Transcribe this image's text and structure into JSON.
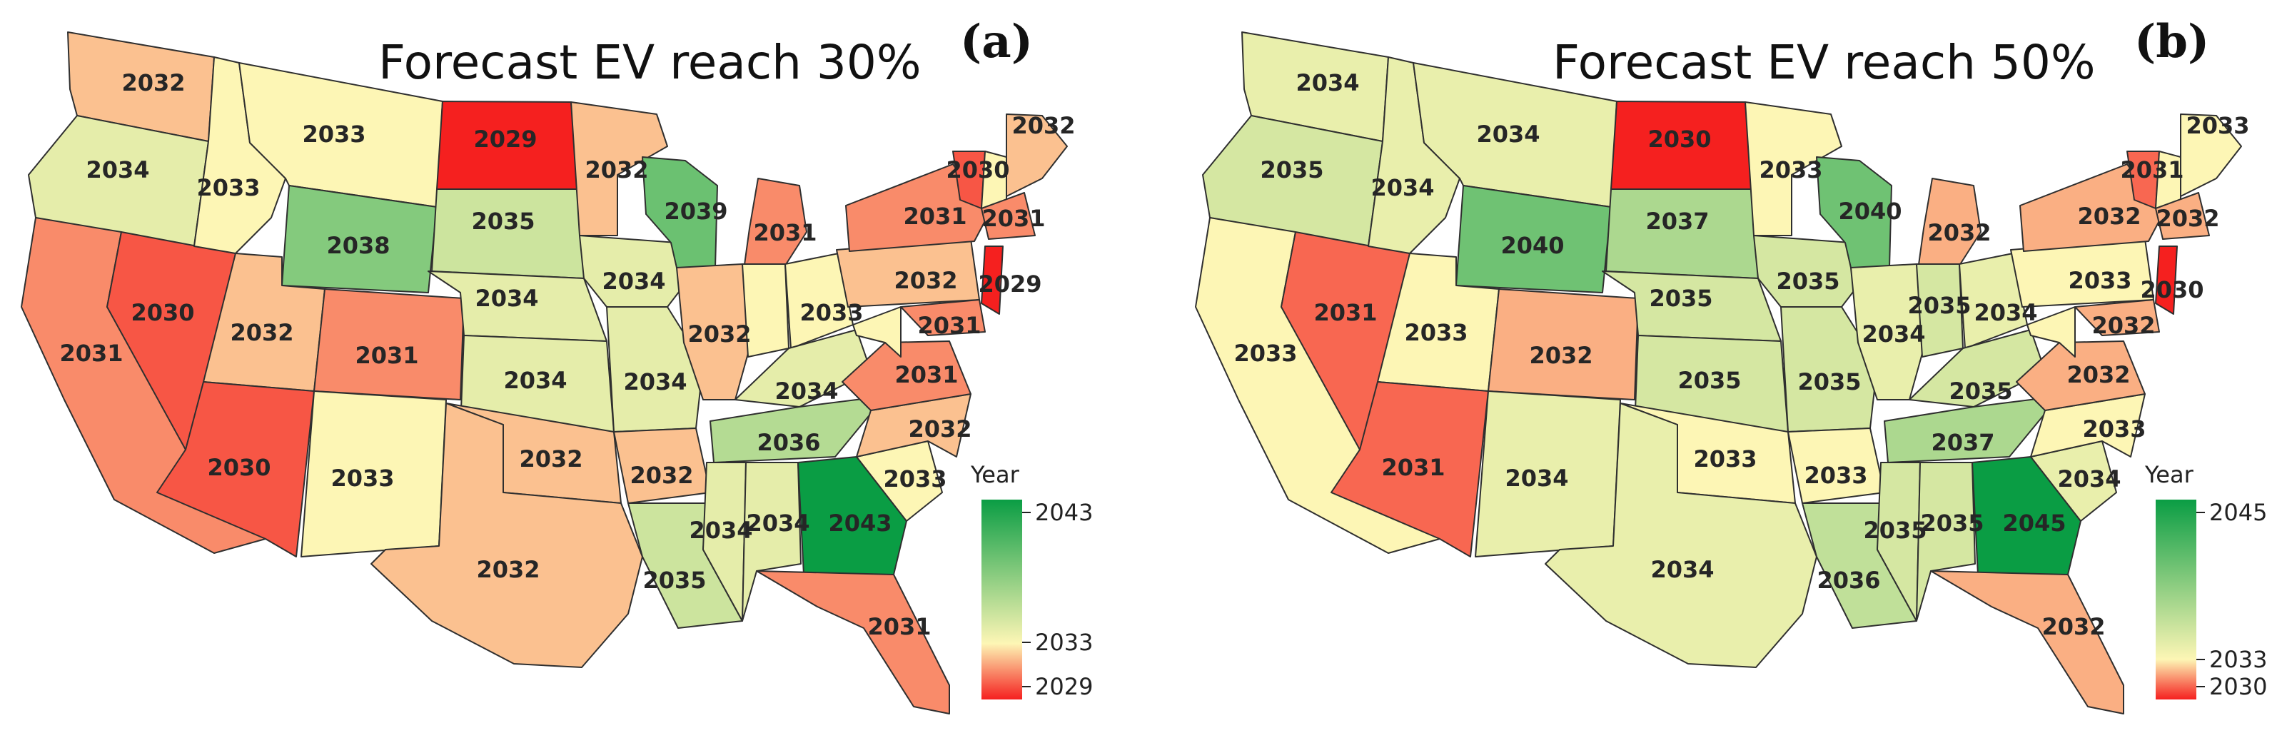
{
  "colors": {
    "low": "#f5201f",
    "mid": "#fdf6b5",
    "high": "#0a9d44",
    "border": "#2f2f2f",
    "background": "#ffffff"
  },
  "panels": [
    {
      "panel_label": "(a)",
      "title": "Forecast EV reach 30%",
      "legend": {
        "title": "Year",
        "ticks": [
          "2043",
          "2033",
          "2029"
        ],
        "min": 2029,
        "mid": 2033,
        "max": 2043
      },
      "states": {
        "WA": "2032",
        "OR": "2034",
        "CA": "2031",
        "NV": "2030",
        "ID": "2033",
        "MT": "2033",
        "WY": "2038",
        "UT": "2032",
        "AZ": "2030",
        "CO": "2031",
        "NM": "2033",
        "ND": "2029",
        "SD": "2035",
        "NE": "2034",
        "KS": "2034",
        "OK": "2032",
        "TX": "2032",
        "MN": "2032",
        "IA": "2034",
        "MO": "2034",
        "AR": "2032",
        "LA": "2035",
        "WI": "2039",
        "IL": "2032",
        "MI": "2031",
        "IN": "",
        "OH": "2033",
        "KY": "2034",
        "TN": "2036",
        "MS": "2034",
        "AL": "2034",
        "GA": "2043",
        "FL": "2031",
        "SC": "2033",
        "NC": "2032",
        "VA": "2031",
        "WV": "",
        "PA": "2032",
        "NY": "2031",
        "VT": "2030",
        "NH": "",
        "ME": "2032",
        "MA": "2031",
        "NJ": "2029",
        "MD": "2031"
      }
    },
    {
      "panel_label": "(b)",
      "title": "Forecast EV reach 50%",
      "legend": {
        "title": "Year",
        "ticks": [
          "2045",
          "2033",
          "2030"
        ],
        "min": 2030,
        "mid": 2033,
        "max": 2045
      },
      "states": {
        "WA": "2034",
        "OR": "2035",
        "CA": "2033",
        "NV": "2031",
        "ID": "2034",
        "MT": "2034",
        "WY": "2040",
        "UT": "2033",
        "AZ": "2031",
        "CO": "2032",
        "NM": "2034",
        "ND": "2030",
        "SD": "2037",
        "NE": "2035",
        "KS": "2035",
        "OK": "2033",
        "TX": "2034",
        "MN": "2033",
        "IA": "2035",
        "MO": "2035",
        "AR": "2033",
        "LA": "2036",
        "WI": "2040",
        "IL": "2034",
        "MI": "2032",
        "IN": "2035",
        "OH": "2034",
        "KY": "2035",
        "TN": "2037",
        "MS": "2035",
        "AL": "2035",
        "GA": "2045",
        "FL": "2032",
        "SC": "2034",
        "NC": "2033",
        "VA": "2032",
        "WV": "",
        "PA": "2033",
        "NY": "2032",
        "VT": "2031",
        "NH": "",
        "ME": "2033",
        "MA": "2032",
        "NJ": "2030",
        "MD": "2032"
      }
    }
  ]
}
